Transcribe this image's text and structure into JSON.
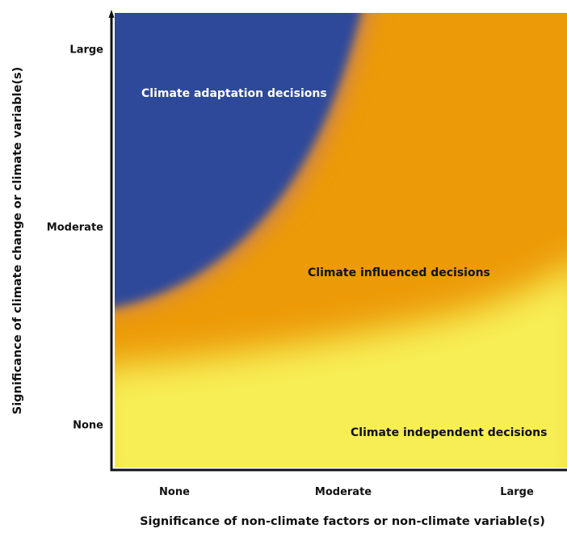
{
  "figure": {
    "x_axis": {
      "title": "Significance of non-climate factors or non-climate variable(s)",
      "ticks": [
        "None",
        "Moderate",
        "Large"
      ]
    },
    "y_axis": {
      "title": "Significance of climate change or climate variable(s)",
      "ticks": [
        "Large",
        "Moderate",
        "None"
      ]
    },
    "regions": [
      {
        "label": "Climate adaptation decisions",
        "color": "#2E4A9A"
      },
      {
        "label": "Climate influenced decisions",
        "color": "#EC9A07"
      },
      {
        "label": "Climate independent decisions",
        "color": "#F7EE55"
      }
    ],
    "colors": {
      "blue": "#2E4A9A",
      "orange": "#EC9A07",
      "yellow": "#F7EE55",
      "axis": "#111111"
    }
  }
}
